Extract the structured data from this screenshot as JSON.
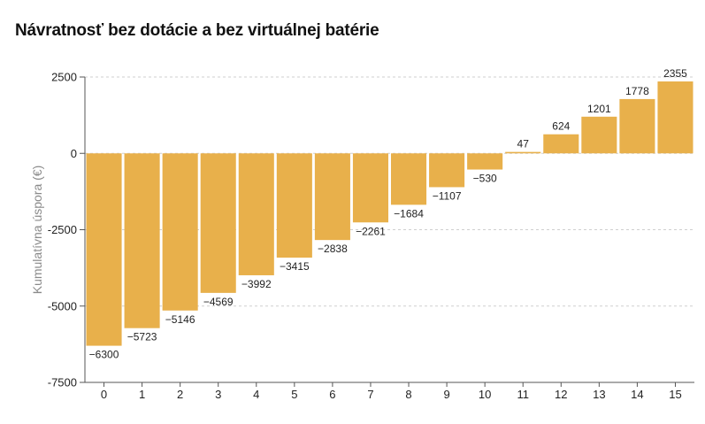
{
  "chart_data": {
    "type": "bar",
    "title": "Návratnosť bez dotácie a bez virtuálnej batérie",
    "xlabel": "",
    "ylabel": "Kumulatívna úspora (€)",
    "categories": [
      "0",
      "1",
      "2",
      "3",
      "4",
      "5",
      "6",
      "7",
      "8",
      "9",
      "10",
      "11",
      "12",
      "13",
      "14",
      "15"
    ],
    "values": [
      -6300,
      -5723,
      -5146,
      -4569,
      -3992,
      -3415,
      -2838,
      -2261,
      -1684,
      -1107,
      -530,
      47,
      624,
      1201,
      1778,
      2355
    ],
    "ylim": [
      -7500,
      2500
    ],
    "yticks": [
      -7500,
      -5000,
      -2500,
      0,
      2500
    ],
    "ytick_labels": [
      "-7500",
      "-5000",
      "-2500",
      "0",
      "2500"
    ],
    "bar_color": "#e8b04b",
    "grid": true,
    "grid_style": "dashed horizontal"
  }
}
